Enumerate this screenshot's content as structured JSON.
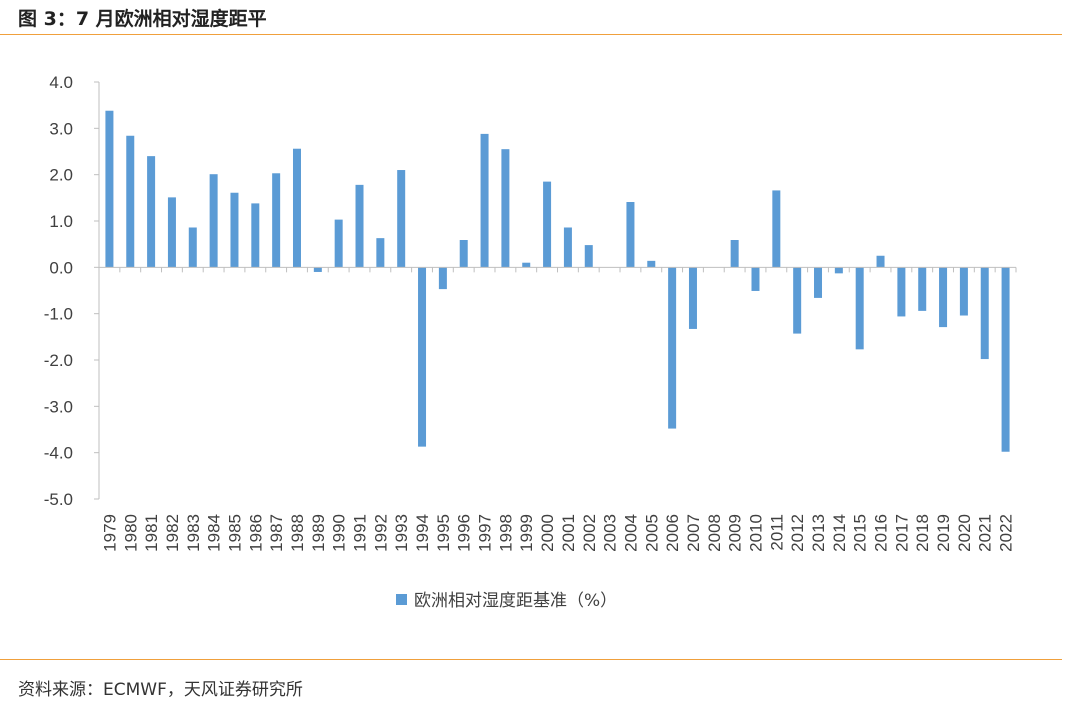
{
  "figure": {
    "title": "图 3：7 月欧洲相对湿度距平",
    "source": "资料来源：ECMWF，天风证券研究所"
  },
  "chart_data": {
    "type": "bar",
    "title": "",
    "xlabel": "",
    "ylabel": "",
    "ylim": [
      -5.0,
      4.0
    ],
    "yticks": [
      "4.0",
      "3.0",
      "2.0",
      "1.0",
      "0.0",
      "-1.0",
      "-2.0",
      "-3.0",
      "-4.0",
      "-5.0"
    ],
    "grid": false,
    "legend_position": "bottom",
    "categories": [
      "1979",
      "1980",
      "1981",
      "1982",
      "1983",
      "1984",
      "1985",
      "1986",
      "1987",
      "1988",
      "1989",
      "1990",
      "1991",
      "1992",
      "1993",
      "1994",
      "1995",
      "1996",
      "1997",
      "1998",
      "1999",
      "2000",
      "2001",
      "2002",
      "2003",
      "2004",
      "2005",
      "2006",
      "2007",
      "2008",
      "2009",
      "2010",
      "2011",
      "2012",
      "2013",
      "2014",
      "2015",
      "2016",
      "2017",
      "2018",
      "2019",
      "2020",
      "2021",
      "2022"
    ],
    "series": [
      {
        "name": "欧洲相对湿度距基准（%）",
        "color": "#5B9BD5",
        "values": [
          3.38,
          2.84,
          2.4,
          1.51,
          0.86,
          2.01,
          1.61,
          1.38,
          2.03,
          2.56,
          -0.1,
          1.03,
          1.78,
          0.63,
          2.1,
          -3.87,
          -0.47,
          0.59,
          2.88,
          2.55,
          0.1,
          1.85,
          0.86,
          0.48,
          0.0,
          1.41,
          0.14,
          -3.48,
          -1.33,
          0.0,
          0.59,
          -0.51,
          1.66,
          -1.43,
          -0.66,
          -0.13,
          -1.77,
          0.25,
          -1.06,
          -0.94,
          -1.29,
          -1.04,
          -1.98,
          -3.98
        ]
      }
    ]
  }
}
